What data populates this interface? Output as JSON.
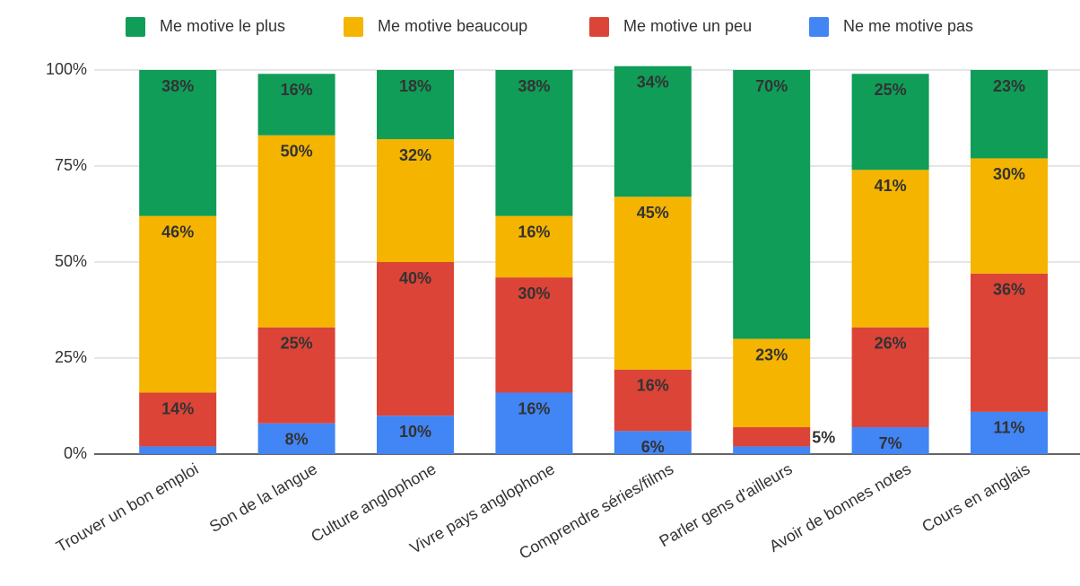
{
  "chart_data": {
    "type": "stacked_bar",
    "categories": [
      "Trouver un bon emploi",
      "Son de la langue",
      "Culture anglophone",
      "Vivre pays anglophone",
      "Comprendre séries/films",
      "Parler gens d'ailleurs",
      "Avoir de bonnes notes",
      "Cours en anglais"
    ],
    "series": [
      {
        "name": "Ne me motive pas",
        "color": "#4285f4",
        "label_color": "#ffffff",
        "values": [
          2,
          8,
          10,
          16,
          6,
          2,
          7,
          11
        ],
        "value_labels": [
          null,
          "8%",
          "10%",
          "16%",
          "6%",
          null,
          "7%",
          "11%"
        ]
      },
      {
        "name": "Me motive un peu",
        "color": "#db4437",
        "label_color": "#ffffff",
        "values": [
          14,
          25,
          40,
          30,
          16,
          5,
          26,
          36
        ],
        "value_labels": [
          "14%",
          "25%",
          "40%",
          "30%",
          "16%",
          "5%",
          "26%",
          "36%"
        ]
      },
      {
        "name": "Me motive beaucoup",
        "color": "#f4b400",
        "label_color": "#222222",
        "values": [
          46,
          50,
          32,
          16,
          45,
          23,
          41,
          30
        ],
        "value_labels": [
          "46%",
          "50%",
          "32%",
          "16%",
          "45%",
          "23%",
          "41%",
          "30%"
        ]
      },
      {
        "name": "Me motive le plus",
        "color": "#0f9d58",
        "label_color": "#ffffff",
        "values": [
          38,
          16,
          18,
          38,
          34,
          70,
          25,
          23
        ],
        "value_labels": [
          "38%",
          "16%",
          "18%",
          "38%",
          "34%",
          "70%",
          "25%",
          "23%"
        ]
      }
    ],
    "legend_order": [
      3,
      2,
      1,
      0
    ],
    "ylim": [
      0,
      100
    ],
    "yticks": [
      {
        "value": 0,
        "label": "0%"
      },
      {
        "value": 25,
        "label": "25%"
      },
      {
        "value": 50,
        "label": "50%"
      },
      {
        "value": 75,
        "label": "75%"
      },
      {
        "value": 100,
        "label": "100%"
      }
    ],
    "grid": true
  }
}
